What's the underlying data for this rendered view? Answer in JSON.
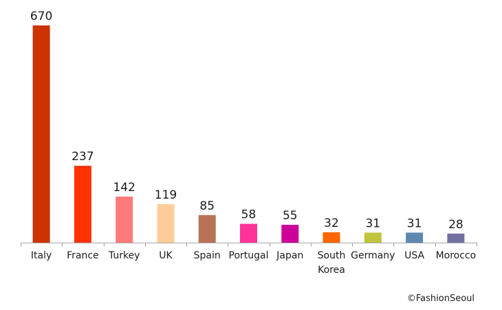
{
  "chart_data": {
    "type": "bar",
    "categories": [
      [
        "Italy"
      ],
      [
        "France"
      ],
      [
        "Turkey"
      ],
      [
        "UK"
      ],
      [
        "Spain"
      ],
      [
        "Portugal"
      ],
      [
        "Japan"
      ],
      [
        "South",
        "Korea"
      ],
      [
        "Germany"
      ],
      [
        "USA"
      ],
      [
        "Morocco"
      ]
    ],
    "values": [
      670,
      237,
      142,
      119,
      85,
      58,
      55,
      32,
      31,
      31,
      28
    ],
    "colors": [
      "#cc3300",
      "#ff3300",
      "#ff7b7b",
      "#ffcc99",
      "#b87356",
      "#ff3399",
      "#cc0099",
      "#ff6600",
      "#bfc43c",
      "#5e88b0",
      "#72709f"
    ],
    "data_labels": [
      "670",
      "237",
      "142",
      "119",
      "85",
      "58",
      "55",
      "32",
      "31",
      "31",
      "28"
    ],
    "title": "",
    "xlabel": "",
    "ylabel": "",
    "ylim": [
      0,
      670
    ],
    "grid": false,
    "legend": "none"
  },
  "credit": {
    "symbol": "©",
    "text": "FashionSeoul"
  }
}
